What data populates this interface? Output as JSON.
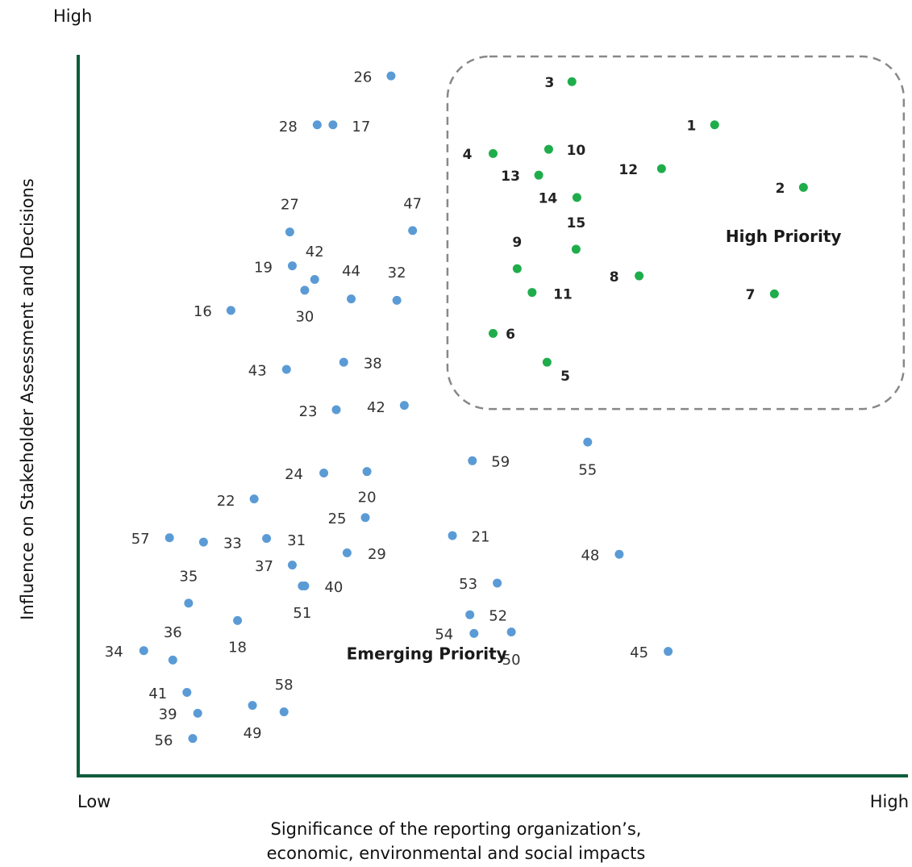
{
  "chart_data": {
    "type": "scatter",
    "title": "",
    "xlabel_lines": [
      "Significance of the reporting organization’s,",
      "economic, environmental and social impacts"
    ],
    "ylabel": "Influence on Stakeholder Assessment and Decisions",
    "x_low_label": "Low",
    "x_high_label": "High",
    "y_high_label": "High",
    "xlim": [
      0,
      100
    ],
    "ylim": [
      0,
      100
    ],
    "colors": {
      "high": "#1fad4b",
      "emerging": "#5b9bd5",
      "axis": "#0d5c3c",
      "box": "#888888"
    },
    "annotations": [
      {
        "text": "High Priority",
        "x": 85,
        "y": 75
      },
      {
        "text": "Emerging Priority",
        "x": 42,
        "y": 17
      }
    ],
    "high_priority_region": {
      "x": [
        44.5,
        99.5
      ],
      "y": [
        51,
        100
      ]
    },
    "series": [
      {
        "name": "High Priority",
        "group": "high",
        "points": [
          {
            "label": "1",
            "x": 76.7,
            "y": 90.5,
            "lx": 73.9,
            "ly": 90.3
          },
          {
            "label": "2",
            "x": 87.4,
            "y": 81.8,
            "lx": 84.6,
            "ly": 81.6
          },
          {
            "label": "3",
            "x": 59.5,
            "y": 96.5,
            "lx": 56.8,
            "ly": 96.3
          },
          {
            "label": "4",
            "x": 50.0,
            "y": 86.5,
            "lx": 46.9,
            "ly": 86.3
          },
          {
            "label": "5",
            "x": 56.5,
            "y": 57.5,
            "lx": 58.7,
            "ly": 55.5
          },
          {
            "label": "6",
            "x": 50.0,
            "y": 61.5,
            "lx": 52.1,
            "ly": 61.3
          },
          {
            "label": "7",
            "x": 83.9,
            "y": 67.0,
            "lx": 81.0,
            "ly": 66.8
          },
          {
            "label": "8",
            "x": 67.6,
            "y": 69.5,
            "lx": 64.6,
            "ly": 69.3
          },
          {
            "label": "9",
            "x": 52.9,
            "y": 70.5,
            "lx": 52.9,
            "ly": 74.1
          },
          {
            "label": "10",
            "x": 56.7,
            "y": 87.1,
            "lx": 60.0,
            "ly": 86.9
          },
          {
            "label": "11",
            "x": 54.7,
            "y": 67.2,
            "lx": 58.4,
            "ly": 66.9
          },
          {
            "label": "12",
            "x": 70.3,
            "y": 84.4,
            "lx": 66.3,
            "ly": 84.2
          },
          {
            "label": "13",
            "x": 55.5,
            "y": 83.5,
            "lx": 52.1,
            "ly": 83.3
          },
          {
            "label": "14",
            "x": 60.1,
            "y": 80.4,
            "lx": 56.6,
            "ly": 80.2
          },
          {
            "label": "15",
            "x": 60.0,
            "y": 73.2,
            "lx": 60.0,
            "ly": 76.8
          }
        ]
      },
      {
        "name": "Emerging Priority",
        "group": "emerging",
        "points": [
          {
            "label": "16",
            "x": 18.4,
            "y": 64.7,
            "lx": 15.0,
            "ly": 64.5
          },
          {
            "label": "17",
            "x": 30.7,
            "y": 90.5,
            "lx": 34.1,
            "ly": 90.2
          },
          {
            "label": "18",
            "x": 19.2,
            "y": 21.6,
            "lx": 19.2,
            "ly": 17.8
          },
          {
            "label": "19",
            "x": 25.8,
            "y": 70.9,
            "lx": 22.3,
            "ly": 70.6
          },
          {
            "label": "20",
            "x": 34.8,
            "y": 42.3,
            "lx": 34.8,
            "ly": 38.7
          },
          {
            "label": "21",
            "x": 45.1,
            "y": 33.4,
            "lx": 48.5,
            "ly": 33.2
          },
          {
            "label": "22",
            "x": 21.2,
            "y": 38.5,
            "lx": 17.8,
            "ly": 38.2
          },
          {
            "label": "23",
            "x": 31.1,
            "y": 50.9,
            "lx": 27.7,
            "ly": 50.6
          },
          {
            "label": "24",
            "x": 29.6,
            "y": 42.1,
            "lx": 26.0,
            "ly": 41.9
          },
          {
            "label": "25",
            "x": 34.6,
            "y": 35.9,
            "lx": 31.2,
            "ly": 35.7
          },
          {
            "label": "26",
            "x": 37.7,
            "y": 97.3,
            "lx": 34.3,
            "ly": 97.1
          },
          {
            "label": "27",
            "x": 25.5,
            "y": 75.6,
            "lx": 25.5,
            "ly": 79.4
          },
          {
            "label": "28",
            "x": 28.8,
            "y": 90.5,
            "lx": 25.3,
            "ly": 90.2
          },
          {
            "label": "29",
            "x": 32.4,
            "y": 31.0,
            "lx": 36.0,
            "ly": 30.8
          },
          {
            "label": "30",
            "x": 27.3,
            "y": 67.5,
            "lx": 27.3,
            "ly": 63.8
          },
          {
            "label": "31",
            "x": 22.7,
            "y": 33.0,
            "lx": 26.3,
            "ly": 32.7
          },
          {
            "label": "32",
            "x": 38.4,
            "y": 66.1,
            "lx": 38.4,
            "ly": 69.9
          },
          {
            "label": "33",
            "x": 15.1,
            "y": 32.5,
            "lx": 18.6,
            "ly": 32.3
          },
          {
            "label": "34",
            "x": 7.9,
            "y": 17.4,
            "lx": 4.3,
            "ly": 17.2
          },
          {
            "label": "35",
            "x": 13.3,
            "y": 24.0,
            "lx": 13.3,
            "ly": 27.7
          },
          {
            "label": "36",
            "x": 11.4,
            "y": 16.1,
            "lx": 11.4,
            "ly": 19.9
          },
          {
            "label": "37",
            "x": 25.8,
            "y": 29.3,
            "lx": 22.4,
            "ly": 29.1
          },
          {
            "label": "38",
            "x": 32.0,
            "y": 57.5,
            "lx": 35.5,
            "ly": 57.3
          },
          {
            "label": "39",
            "x": 14.4,
            "y": 8.7,
            "lx": 10.8,
            "ly": 8.5
          },
          {
            "label": "40",
            "x": 27.3,
            "y": 26.4,
            "lx": 30.8,
            "ly": 26.2
          },
          {
            "label": "41",
            "x": 13.1,
            "y": 11.6,
            "lx": 9.6,
            "ly": 11.4
          },
          {
            "label": "42",
            "x": 28.5,
            "y": 69.0,
            "lx": 28.5,
            "ly": 72.8
          },
          {
            "label": "42",
            "x": 39.3,
            "y": 51.5,
            "lx": 35.9,
            "ly": 51.2
          },
          {
            "label": "43",
            "x": 25.1,
            "y": 56.5,
            "lx": 21.6,
            "ly": 56.3
          },
          {
            "label": "44",
            "x": 32.9,
            "y": 66.3,
            "lx": 32.9,
            "ly": 70.1
          },
          {
            "label": "45",
            "x": 71.1,
            "y": 17.3,
            "lx": 67.6,
            "ly": 17.1
          },
          {
            "label": "47",
            "x": 40.3,
            "y": 75.8,
            "lx": 40.3,
            "ly": 79.5
          },
          {
            "label": "48",
            "x": 65.2,
            "y": 30.8,
            "lx": 61.7,
            "ly": 30.6
          },
          {
            "label": "49",
            "x": 21.0,
            "y": 9.8,
            "lx": 21.0,
            "ly": 5.9
          },
          {
            "label": "50",
            "x": 52.2,
            "y": 20.0,
            "lx": 52.2,
            "ly": 16.1
          },
          {
            "label": "51",
            "x": 27.0,
            "y": 26.4,
            "lx": 27.0,
            "ly": 22.6
          },
          {
            "label": "52",
            "x": 47.2,
            "y": 22.4,
            "lx": 50.6,
            "ly": 22.2
          },
          {
            "label": "53",
            "x": 50.5,
            "y": 26.8,
            "lx": 47.0,
            "ly": 26.6
          },
          {
            "label": "54",
            "x": 47.7,
            "y": 19.8,
            "lx": 44.1,
            "ly": 19.6
          },
          {
            "label": "55",
            "x": 61.4,
            "y": 46.4,
            "lx": 61.4,
            "ly": 42.5
          },
          {
            "label": "56",
            "x": 13.8,
            "y": 5.2,
            "lx": 10.3,
            "ly": 4.9
          },
          {
            "label": "57",
            "x": 11.0,
            "y": 33.1,
            "lx": 7.5,
            "ly": 32.9
          },
          {
            "label": "58",
            "x": 24.8,
            "y": 8.9,
            "lx": 24.8,
            "ly": 12.6
          },
          {
            "label": "59",
            "x": 47.5,
            "y": 43.8,
            "lx": 50.9,
            "ly": 43.6
          }
        ]
      }
    ]
  }
}
